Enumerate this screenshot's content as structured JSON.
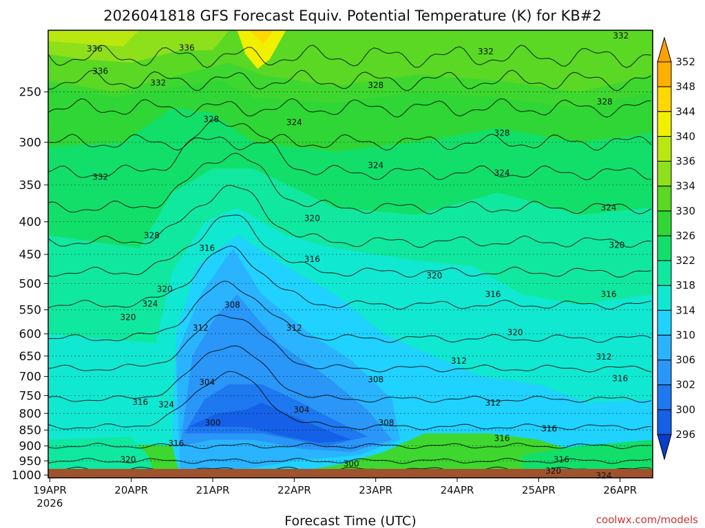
{
  "page": {
    "title": "2026041818 GFS Forecast Equiv. Potential Temperature (K) for KB#2",
    "credit": "coolwx.com/models"
  },
  "chart_data": {
    "type": "heatmap",
    "title": "2026041818 GFS Forecast Equiv. Potential Temperature (K) for KB#2",
    "xlabel": "Forecast Time (UTC)",
    "ylabel": "",
    "x_ticks": [
      {
        "label": "19APR",
        "sublabel": "2026",
        "day": 0
      },
      {
        "label": "20APR",
        "sublabel": "",
        "day": 1
      },
      {
        "label": "21APR",
        "sublabel": "",
        "day": 2
      },
      {
        "label": "22APR",
        "sublabel": "",
        "day": 3
      },
      {
        "label": "23APR",
        "sublabel": "",
        "day": 4
      },
      {
        "label": "24APR",
        "sublabel": "",
        "day": 5
      },
      {
        "label": "25APR",
        "sublabel": "",
        "day": 6
      },
      {
        "label": "26APR",
        "sublabel": "",
        "day": 7
      }
    ],
    "x_range_days": [
      -0.02,
      7.4
    ],
    "y_ticks": [
      250,
      300,
      350,
      400,
      450,
      500,
      550,
      600,
      650,
      700,
      750,
      800,
      850,
      900,
      950,
      1000
    ],
    "y_range": [
      200,
      1010
    ],
    "y_scale": "log-pressure",
    "grid": "dotted horizontal at pressure levels",
    "colorbar": {
      "levels": [
        296,
        300,
        302,
        306,
        310,
        314,
        318,
        322,
        326,
        330,
        334,
        336,
        340,
        344,
        348,
        352
      ],
      "labels": [
        "296",
        "300",
        "302",
        "306",
        "310",
        "314",
        "318",
        "322",
        "326",
        "330",
        "334",
        "336",
        "340",
        "344",
        "348",
        "352"
      ],
      "colors": [
        "#1460e6",
        "#1e78f0",
        "#2a96f8",
        "#2ab4ff",
        "#20d2ff",
        "#10e8d2",
        "#10e8a0",
        "#12df6a",
        "#2fd636",
        "#5ad824",
        "#8ee01a",
        "#b8e810",
        "#f0f000",
        "#ffd800",
        "#ffb000"
      ],
      "extend": "both"
    },
    "contour_labels": [
      {
        "text": "336",
        "day": 0.55,
        "p": 214
      },
      {
        "text": "332",
        "day": 7.01,
        "p": 204
      },
      {
        "text": "332",
        "day": 5.35,
        "p": 216
      },
      {
        "text": "336",
        "day": 1.68,
        "p": 213
      },
      {
        "text": "336",
        "day": 0.62,
        "p": 232
      },
      {
        "text": "332",
        "day": 1.33,
        "p": 242
      },
      {
        "text": "328",
        "day": 4.0,
        "p": 244
      },
      {
        "text": "328",
        "day": 6.81,
        "p": 259
      },
      {
        "text": "328",
        "day": 1.98,
        "p": 276
      },
      {
        "text": "324",
        "day": 3.0,
        "p": 279
      },
      {
        "text": "328",
        "day": 5.55,
        "p": 290
      },
      {
        "text": "324",
        "day": 4.0,
        "p": 326
      },
      {
        "text": "332",
        "day": 0.62,
        "p": 340
      },
      {
        "text": "324",
        "day": 5.55,
        "p": 335
      },
      {
        "text": "324",
        "day": 6.86,
        "p": 380
      },
      {
        "text": "320",
        "day": 3.22,
        "p": 395
      },
      {
        "text": "328",
        "day": 1.25,
        "p": 420
      },
      {
        "text": "316",
        "day": 1.93,
        "p": 440
      },
      {
        "text": "320",
        "day": 6.96,
        "p": 435
      },
      {
        "text": "316",
        "day": 3.22,
        "p": 458
      },
      {
        "text": "320",
        "day": 4.72,
        "p": 486
      },
      {
        "text": "320",
        "day": 1.41,
        "p": 510
      },
      {
        "text": "316",
        "day": 5.44,
        "p": 520
      },
      {
        "text": "316",
        "day": 6.86,
        "p": 520
      },
      {
        "text": "324",
        "day": 1.23,
        "p": 538
      },
      {
        "text": "308",
        "day": 2.24,
        "p": 540
      },
      {
        "text": "320",
        "day": 0.96,
        "p": 565
      },
      {
        "text": "312",
        "day": 1.85,
        "p": 587
      },
      {
        "text": "312",
        "day": 3.0,
        "p": 587
      },
      {
        "text": "320",
        "day": 5.71,
        "p": 597
      },
      {
        "text": "312",
        "day": 6.8,
        "p": 652
      },
      {
        "text": "312",
        "day": 5.02,
        "p": 662
      },
      {
        "text": "308",
        "day": 4.0,
        "p": 708
      },
      {
        "text": "304",
        "day": 1.93,
        "p": 715
      },
      {
        "text": "316",
        "day": 7.0,
        "p": 705
      },
      {
        "text": "316",
        "day": 1.11,
        "p": 768
      },
      {
        "text": "324",
        "day": 1.43,
        "p": 775
      },
      {
        "text": "312",
        "day": 5.44,
        "p": 770
      },
      {
        "text": "304",
        "day": 3.09,
        "p": 790
      },
      {
        "text": "300",
        "day": 2.0,
        "p": 828
      },
      {
        "text": "308",
        "day": 4.13,
        "p": 828
      },
      {
        "text": "316",
        "day": 6.13,
        "p": 845
      },
      {
        "text": "316",
        "day": 5.55,
        "p": 875
      },
      {
        "text": "316",
        "day": 1.55,
        "p": 892
      },
      {
        "text": "320",
        "day": 0.96,
        "p": 945
      },
      {
        "text": "316",
        "day": 6.28,
        "p": 945
      },
      {
        "text": "300",
        "day": 3.7,
        "p": 960
      },
      {
        "text": "320",
        "day": 6.18,
        "p": 985
      },
      {
        "text": "324",
        "day": 6.8,
        "p": 1002
      }
    ]
  }
}
